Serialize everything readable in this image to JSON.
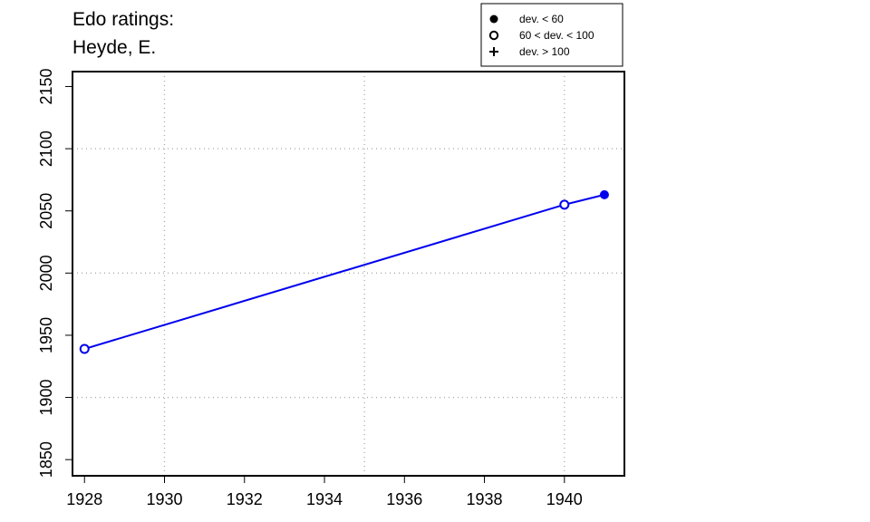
{
  "chart_data": {
    "type": "line",
    "title": [
      "Edo ratings:",
      "Heyde, E."
    ],
    "xlabel": "",
    "ylabel": "",
    "xlim": [
      1927.7,
      1941.5
    ],
    "ylim": [
      1837,
      2162
    ],
    "x_ticks": [
      1928,
      1930,
      1932,
      1934,
      1936,
      1938,
      1940
    ],
    "y_ticks": [
      1850,
      1900,
      1950,
      2000,
      2050,
      2100,
      2150
    ],
    "x_grid": [
      1930,
      1935,
      1940
    ],
    "y_grid": [
      1900,
      2000,
      2100
    ],
    "grid": true,
    "series": [
      {
        "color": "#0000ee",
        "points": [
          {
            "x": 1928,
            "y": 1939,
            "marker": "open-circle"
          },
          {
            "x": 1940,
            "y": 2055,
            "marker": "open-circle"
          },
          {
            "x": 1941,
            "y": 2063,
            "marker": "filled-circle"
          }
        ]
      }
    ],
    "legend": {
      "position": "top-right",
      "entries": [
        {
          "label": "dev. < 60",
          "marker": "filled-circle"
        },
        {
          "label": "60 < dev. < 100",
          "marker": "open-circle"
        },
        {
          "label": "dev. > 100",
          "marker": "plus"
        }
      ]
    }
  }
}
